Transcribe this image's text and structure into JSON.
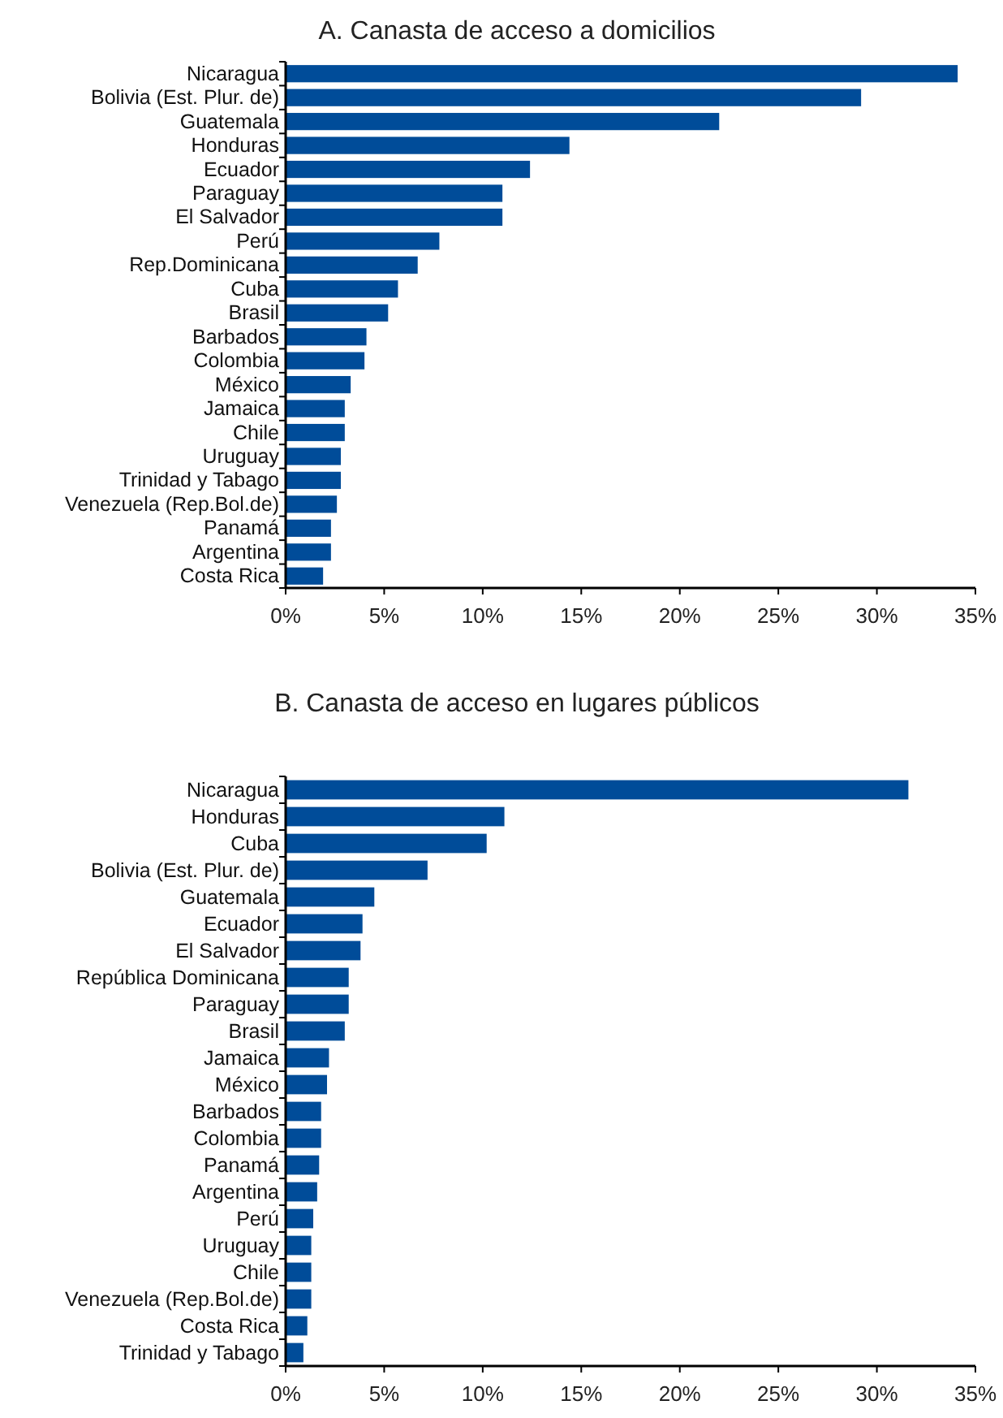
{
  "chart_data": [
    {
      "type": "bar",
      "orientation": "horizontal",
      "title": "A. Canasta de acceso a domicilios",
      "categories": [
        "Nicaragua",
        "Bolivia (Est. Plur. de)",
        "Guatemala",
        "Honduras",
        "Ecuador",
        "Paraguay",
        "El Salvador",
        "Perú",
        "Rep.Dominicana",
        "Cuba",
        "Brasil",
        "Barbados",
        "Colombia",
        "México",
        "Jamaica",
        "Chile",
        "Uruguay",
        "Trinidad y Tabago",
        "Venezuela (Rep.Bol.de)",
        "Panamá",
        "Argentina",
        "Costa Rica"
      ],
      "values": [
        34.1,
        29.2,
        22.0,
        14.4,
        12.4,
        11.0,
        11.0,
        7.8,
        6.7,
        5.7,
        5.2,
        4.1,
        4.0,
        3.3,
        3.0,
        3.0,
        2.8,
        2.8,
        2.6,
        2.3,
        2.3,
        1.9
      ],
      "color": "#004c99",
      "xlim": [
        0,
        35
      ],
      "xticks": [
        {
          "value": 0,
          "label": "0%"
        },
        {
          "value": 5,
          "label": "5%"
        },
        {
          "value": 10,
          "label": "10%"
        },
        {
          "value": 15,
          "label": "15%"
        },
        {
          "value": 20,
          "label": "20%"
        },
        {
          "value": 25,
          "label": "25%"
        },
        {
          "value": 30,
          "label": "30%"
        },
        {
          "value": 35,
          "label": "35%"
        }
      ],
      "grid": false
    },
    {
      "type": "bar",
      "orientation": "horizontal",
      "title": "B. Canasta de acceso en lugares públicos",
      "categories": [
        "Nicaragua",
        "Honduras",
        "Cuba",
        "Bolivia (Est. Plur. de)",
        "Guatemala",
        "Ecuador",
        "El Salvador",
        "República Dominicana",
        "Paraguay",
        "Brasil",
        "Jamaica",
        "México",
        "Barbados",
        "Colombia",
        "Panamá",
        "Argentina",
        "Perú",
        "Uruguay",
        "Chile",
        "Venezuela (Rep.Bol.de)",
        "Costa Rica",
        "Trinidad y Tabago"
      ],
      "values": [
        31.6,
        11.1,
        10.2,
        7.2,
        4.5,
        3.9,
        3.8,
        3.2,
        3.2,
        3.0,
        2.2,
        2.1,
        1.8,
        1.8,
        1.7,
        1.6,
        1.4,
        1.3,
        1.3,
        1.3,
        1.1,
        0.9
      ],
      "color": "#004c99",
      "xlim": [
        0,
        35
      ],
      "xticks": [
        {
          "value": 0,
          "label": "0%"
        },
        {
          "value": 5,
          "label": "5%"
        },
        {
          "value": 10,
          "label": "10%"
        },
        {
          "value": 15,
          "label": "15%"
        },
        {
          "value": 20,
          "label": "20%"
        },
        {
          "value": 25,
          "label": "25%"
        },
        {
          "value": 30,
          "label": "30%"
        },
        {
          "value": 35,
          "label": "35%"
        }
      ],
      "grid": false
    }
  ]
}
